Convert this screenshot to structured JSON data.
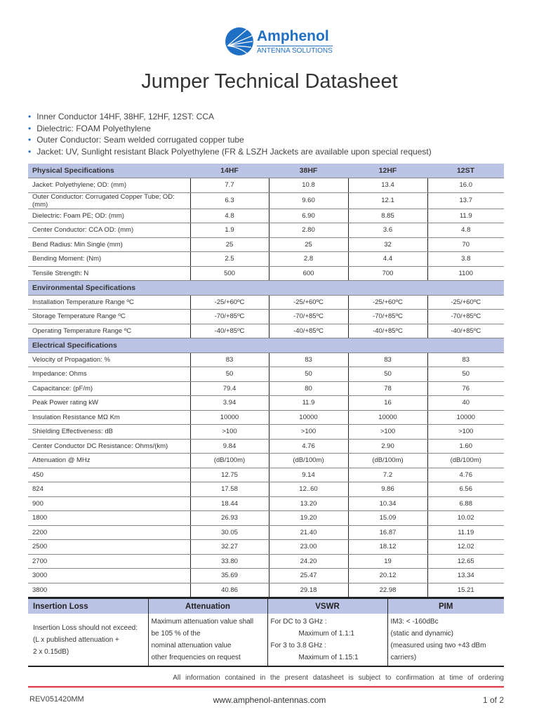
{
  "logo": {
    "brand": "Amphenol",
    "subtitle": "ANTENNA SOLUTIONS",
    "color": "#1f6fc5"
  },
  "title": "Jumper Technical Datasheet",
  "bullets": [
    "Inner Conductor 14HF, 38HF, 12HF, 12ST: CCA",
    "Dielectric: FOAM Polyethylene",
    "Outer Conductor: Seam welded corrugated copper tube",
    "Jacket: UV, Sunlight resistant Black Polyethylene (FR & LSZH Jackets are available upon special request)"
  ],
  "spec_table": {
    "header": [
      "Physical Specifications",
      "14HF",
      "38HF",
      "12HF",
      "12ST"
    ],
    "sections": [
      {
        "title": null,
        "rows": [
          [
            "Jacket: Polyethylene; OD: (mm)",
            "7.7",
            "10.8",
            "13.4",
            "16.0"
          ],
          [
            "Outer Conductor: Corrugated Copper Tube; OD: (mm)",
            "6.3",
            "9.60",
            "12.1",
            "13.7"
          ],
          [
            "Dielectric: Foam PE; OD: (mm)",
            "4.8",
            "6.90",
            "8.85",
            "11.9"
          ],
          [
            "Center Conductor: CCA OD: (mm)",
            "1.9",
            "2.80",
            "3.6",
            "4.8"
          ],
          [
            "Bend Radius: Min Single (mm)",
            "25",
            "25",
            "32",
            "70"
          ],
          [
            "Bending Moment: (Nm)",
            "2.5",
            "2.8",
            "4.4",
            "3.8"
          ],
          [
            "Tensile Strength: N",
            "500",
            "600",
            "700",
            "1100"
          ]
        ]
      },
      {
        "title": "Environmental Specifications",
        "rows": [
          [
            "Installation Temperature Range ºC",
            "-25/+60ºC",
            "-25/+60ºC",
            "-25/+60ºC",
            "-25/+60ºC"
          ],
          [
            "Storage Temperature Range ºC",
            "-70/+85ºC",
            "-70/+85ºC",
            "-70/+85ºC",
            "-70/+85ºC"
          ],
          [
            "Operating Temperature Range ºC",
            "-40/+85ºC",
            "-40/+85ºC",
            "-40/+85ºC",
            "-40/+85ºC"
          ]
        ]
      },
      {
        "title": "Electrical Specifications",
        "rows": [
          [
            "Velocity of Propagation: %",
            "83",
            "83",
            "83",
            "83"
          ],
          [
            "Impedance: Ohms",
            "50",
            "50",
            "50",
            "50"
          ],
          [
            "Capacitance: (pF/m)",
            "79.4",
            "80",
            "78",
            "76"
          ],
          [
            "Peak Power rating kW",
            "3.94",
            "11.9",
            "16",
            "40"
          ],
          [
            "Insulation Resistance MΩ Km",
            "10000",
            "10000",
            "10000",
            "10000"
          ],
          [
            "Shielding Effectiveness: dB",
            ">100",
            ">100",
            ">100",
            ">100"
          ],
          [
            "Center Conductor DC Resistance: Ohms/(km)",
            "9.84",
            "4.76",
            "2.90",
            "1.60"
          ],
          [
            "Attenuation @ MHz",
            "(dB/100m)",
            "(dB/100m)",
            "(dB/100m)",
            "(dB/100m)"
          ],
          [
            "450",
            "12.75",
            "9.14",
            "7.2",
            "4.76"
          ],
          [
            "824",
            "17.58",
            "12..60",
            "9.86",
            "6.56"
          ],
          [
            "900",
            "18.44",
            "13.20",
            "10.34",
            "6.88"
          ],
          [
            "1800",
            "26.93",
            "19.20",
            "15.09",
            "10.02"
          ],
          [
            "2200",
            "30.05",
            "21.40",
            "16.87",
            "11.19"
          ],
          [
            "2500",
            "32.27",
            "23.00",
            "18.12",
            "12.02"
          ],
          [
            "2700",
            "33.80",
            "24.20",
            "19",
            "12.65"
          ],
          [
            "3000",
            "35.69",
            "25.47",
            "20.12",
            "13.34"
          ],
          [
            "3800",
            "40.86",
            "29.18",
            "22.98",
            "15.21"
          ]
        ]
      }
    ]
  },
  "insertion_table": {
    "header": [
      "Insertion Loss",
      "Attenuation",
      "VSWR",
      "PIM"
    ],
    "cells": [
      [
        "Insertion Loss should not exceed:",
        "(L x published attenuation +",
        "2 x 0.15dB)"
      ],
      [
        "Maximum attenuation value shall",
        "be 105 % of the",
        "nominal attenuation value",
        "other frequencies on request"
      ],
      [
        "For DC to 3 GHz :",
        "Maximum of 1.1:1",
        "For 3 to 3.8 GHz :",
        "Maximum of 1.15:1"
      ],
      [
        "IM3: < -160dBc",
        "(static and dynamic)",
        "(measured using two +43 dBm",
        "carriers)"
      ]
    ]
  },
  "disclaimer": "All information contained in the present datasheet is subject to confirmation at time of ordering",
  "footer": {
    "rev": "REV051420MM",
    "website": "www.amphenol-antennas.com",
    "page": "1 of 2"
  },
  "colors": {
    "header_bg": "#bcc4e6",
    "accent_line": "#e04050"
  }
}
